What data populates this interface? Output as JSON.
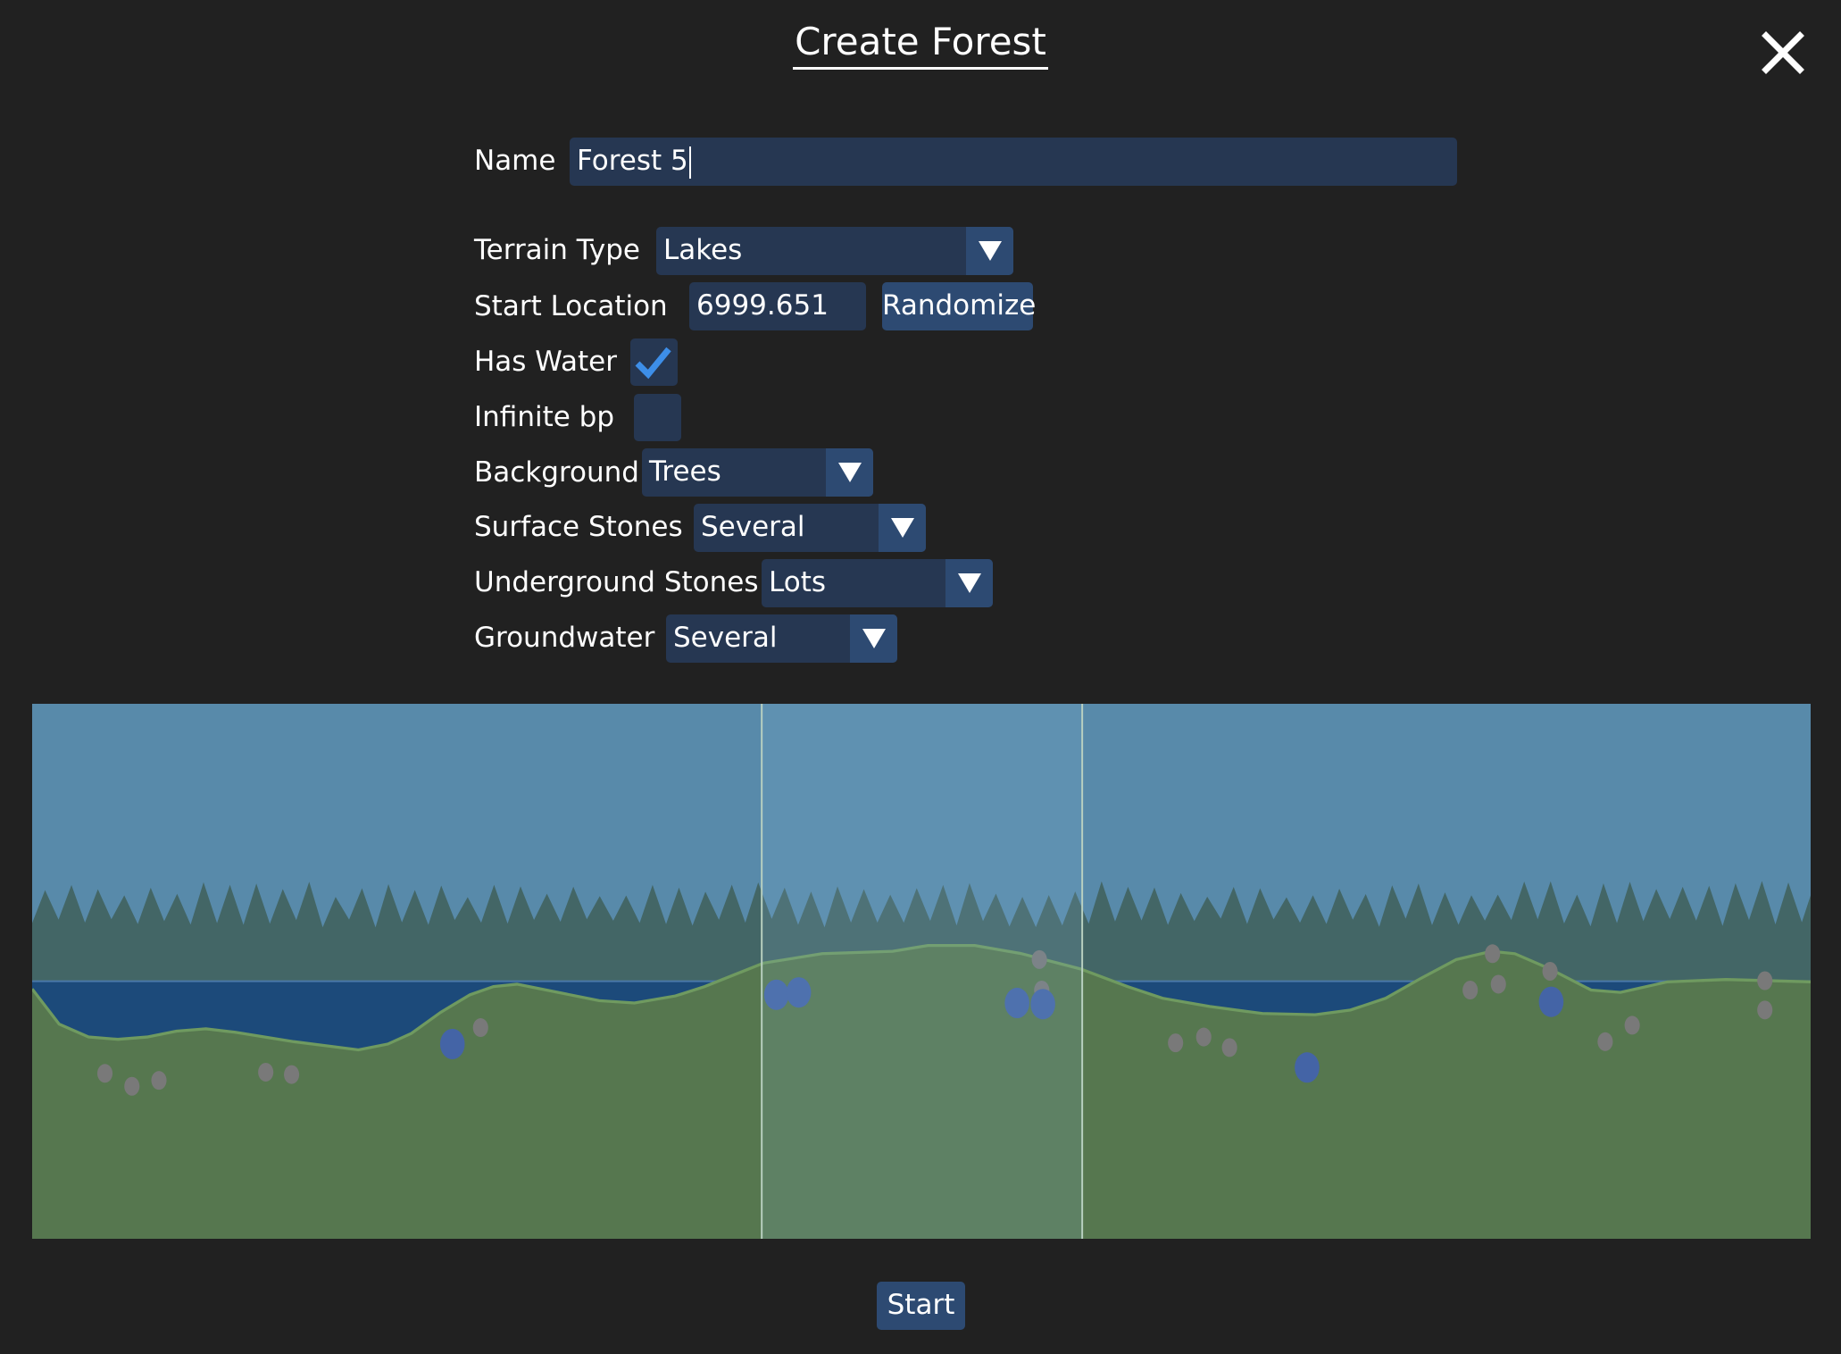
{
  "title": "Create Forest",
  "close_icon": "close-x-icon",
  "form": {
    "name": {
      "label": "Name",
      "value": "Forest 5"
    },
    "terrain_type": {
      "label": "Terrain Type",
      "value": "Lakes"
    },
    "start_location": {
      "label": "Start Location",
      "value": "6999.651",
      "button": "Randomize"
    },
    "has_water": {
      "label": "Has Water",
      "checked": true
    },
    "infinite_bp": {
      "label": "Infinite bp",
      "checked": false
    },
    "background": {
      "label": "Background",
      "value": "Trees"
    },
    "surface_stones": {
      "label": "Surface Stones",
      "value": "Several"
    },
    "underground_stones": {
      "label": "Underground Stones",
      "value": "Lots"
    },
    "groundwater": {
      "label": "Groundwater",
      "value": "Several"
    }
  },
  "colors": {
    "background": "#212121",
    "field": "#263752",
    "button": "#2d4a72",
    "check": "#3d8ee8",
    "sky": "#588aaa",
    "trees": "#436666",
    "water": "#1c4a7a",
    "ground": "#56774f"
  },
  "start_button": "Start"
}
